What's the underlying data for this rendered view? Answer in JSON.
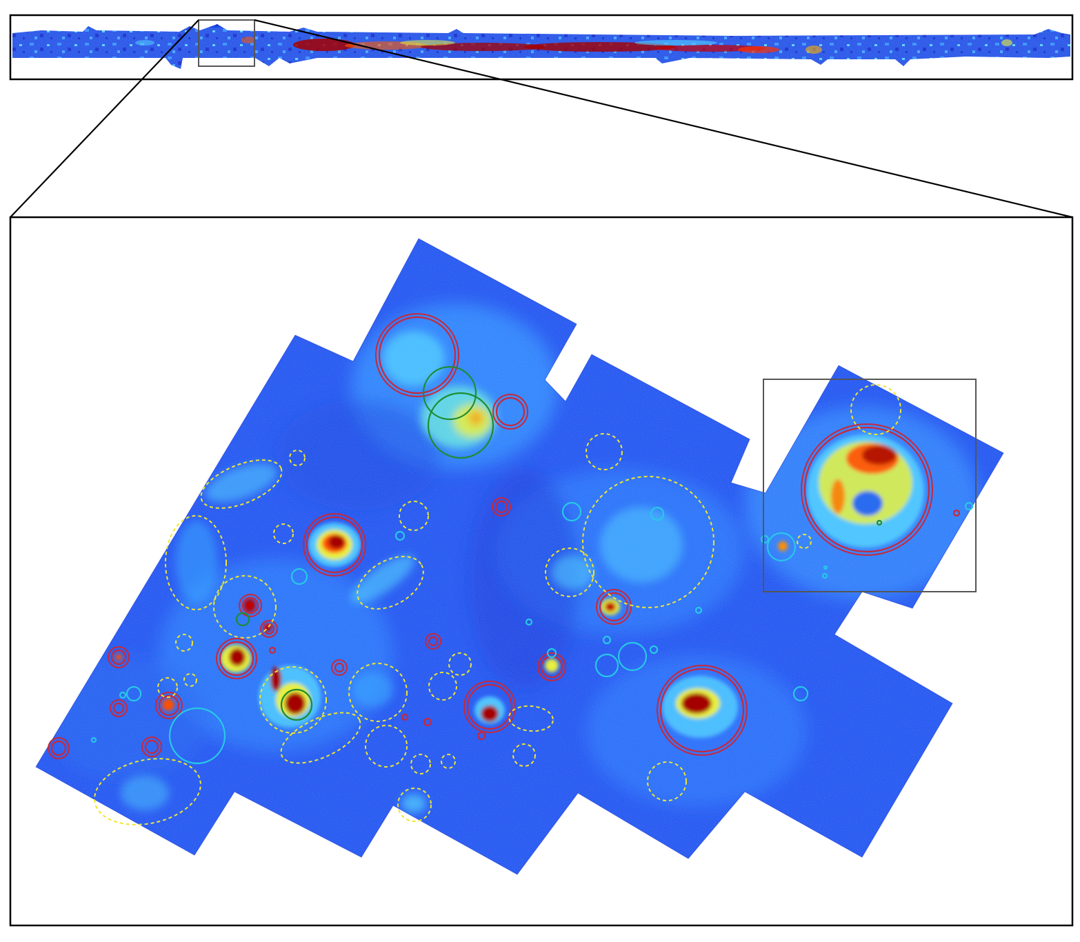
{
  "figure": {
    "colors": {
      "background": "#ffffff",
      "frame": "#000000",
      "inset_box": "#555555",
      "map_base": "#1a4ef0",
      "map_deep": "#0a20c8",
      "map_mid": "#2c8cff",
      "emission_cyan": "#55d2ff",
      "emission_yellow": "#e8f040",
      "emission_orange": "#ff7a00",
      "emission_red": "#a50000",
      "region_red": "#c8283a",
      "region_green": "#1e8c32",
      "region_cyan": "#28c8e6",
      "region_yellow_dashed": "#f0e632"
    }
  }
}
